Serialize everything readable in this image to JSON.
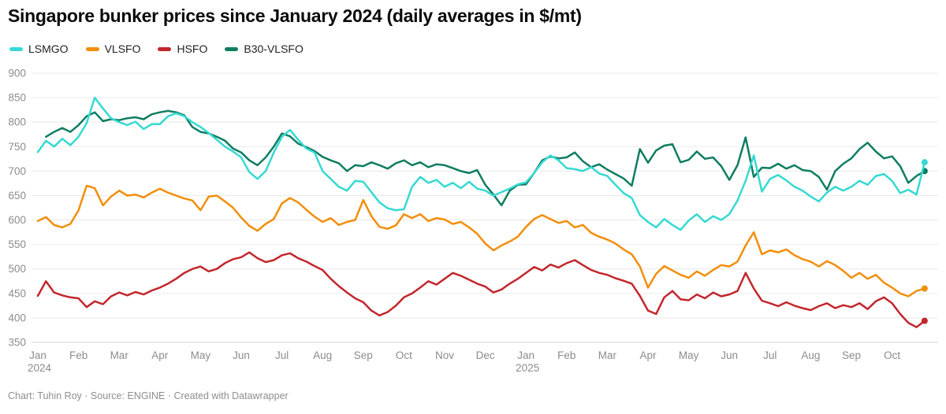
{
  "header": {
    "title": "Singapore bunker prices since January 2024 (daily averages in $/mt)"
  },
  "footer": {
    "credit": "Chart: Tuhin Roy · Source: ENGINE · Created with Datawrapper"
  },
  "colors": {
    "grid": "#e9e9e9",
    "baseline": "#d5d5d5",
    "axis_text": "#8c8c8c",
    "legend_text": "#222222"
  },
  "chart_data": {
    "type": "line",
    "title": "Singapore bunker prices since January 2024 (daily averages in $/mt)",
    "unit": "$/mt",
    "grid": true,
    "legend_position": "top-left",
    "y_axis": {
      "ticks": [
        900,
        850,
        800,
        750,
        700,
        650,
        600,
        550,
        500,
        450,
        400,
        350
      ],
      "min": 350,
      "max": 900
    },
    "x_axis": {
      "months": [
        "Jan",
        "Feb",
        "Mar",
        "Apr",
        "May",
        "Jun",
        "Jul",
        "Aug",
        "Sep",
        "Oct",
        "Nov",
        "Dec",
        "Jan",
        "Feb",
        "Mar",
        "Apr",
        "May",
        "Jun",
        "Jul",
        "Aug",
        "Sep",
        "Oct"
      ],
      "years": [
        {
          "at": 0,
          "label": "2024"
        },
        {
          "at": 12,
          "label": "2025"
        }
      ],
      "x_unit": "months since Jan 2024"
    },
    "series": [
      {
        "name": "LSMGO",
        "color": "#36d9d2",
        "t_start": 0,
        "t_step": 0.2,
        "end_value": 718,
        "values": [
          739,
          762,
          750,
          766,
          753,
          770,
          798,
          850,
          828,
          808,
          800,
          794,
          801,
          786,
          796,
          796,
          812,
          818,
          812,
          800,
          790,
          778,
          764,
          750,
          740,
          728,
          698,
          684,
          700,
          738,
          770,
          784,
          764,
          746,
          738,
          700,
          684,
          668,
          660,
          680,
          678,
          657,
          636,
          624,
          620,
          622,
          668,
          688,
          676,
          682,
          668,
          676,
          665,
          678,
          664,
          660,
          650,
          657,
          664,
          673,
          677,
          696,
          718,
          732,
          722,
          706,
          704,
          700,
          708,
          695,
          690,
          672,
          655,
          645,
          610,
          596,
          585,
          602,
          590,
          580,
          599,
          612,
          596,
          608,
          600,
          612,
          640,
          680,
          732,
          658,
          684,
          692,
          681,
          668,
          660,
          648,
          638,
          656,
          668,
          660,
          668,
          680,
          672,
          690,
          694,
          680,
          655,
          662,
          652,
          718
        ]
      },
      {
        "name": "VLSFO",
        "color": "#f28e0a",
        "t_start": 0,
        "t_step": 0.2,
        "end_value": 460,
        "values": [
          598,
          606,
          590,
          585,
          592,
          620,
          670,
          665,
          630,
          648,
          660,
          650,
          652,
          646,
          656,
          664,
          656,
          650,
          644,
          640,
          620,
          648,
          650,
          638,
          625,
          605,
          588,
          578,
          592,
          602,
          634,
          645,
          636,
          621,
          607,
          596,
          604,
          590,
          596,
          600,
          641,
          608,
          586,
          582,
          589,
          612,
          604,
          612,
          598,
          604,
          601,
          592,
          596,
          585,
          572,
          552,
          538,
          548,
          556,
          566,
          586,
          602,
          610,
          602,
          594,
          598,
          585,
          590,
          574,
          566,
          560,
          552,
          540,
          530,
          505,
          462,
          490,
          506,
          497,
          488,
          482,
          495,
          486,
          498,
          508,
          505,
          515,
          548,
          575,
          530,
          538,
          534,
          540,
          528,
          520,
          515,
          505,
          516,
          508,
          496,
          482,
          492,
          480,
          488,
          472,
          462,
          450,
          444,
          455,
          460
        ]
      },
      {
        "name": "HSFO",
        "color": "#c2272d",
        "t_start": 0,
        "t_step": 0.2,
        "end_value": 394,
        "values": [
          445,
          475,
          452,
          446,
          442,
          440,
          422,
          434,
          428,
          444,
          452,
          446,
          453,
          448,
          456,
          462,
          470,
          480,
          492,
          500,
          505,
          495,
          500,
          512,
          520,
          524,
          534,
          522,
          514,
          518,
          528,
          532,
          522,
          515,
          506,
          498,
          480,
          465,
          452,
          440,
          432,
          415,
          405,
          412,
          425,
          442,
          450,
          462,
          475,
          468,
          480,
          492,
          486,
          478,
          470,
          464,
          452,
          458,
          470,
          480,
          492,
          504,
          497,
          509,
          503,
          512,
          518,
          508,
          498,
          492,
          488,
          481,
          476,
          470,
          445,
          415,
          408,
          442,
          455,
          438,
          436,
          448,
          440,
          452,
          444,
          448,
          455,
          492,
          460,
          435,
          430,
          424,
          432,
          425,
          420,
          416,
          424,
          430,
          420,
          426,
          422,
          430,
          418,
          434,
          442,
          430,
          408,
          390,
          381,
          394
        ]
      },
      {
        "name": "B30-VLSFO",
        "color": "#0e7d62",
        "t_start": 0.2,
        "t_step": 0.2,
        "end_value": 700,
        "values": [
          770,
          780,
          788,
          780,
          794,
          812,
          820,
          802,
          806,
          804,
          808,
          810,
          806,
          816,
          820,
          823,
          820,
          814,
          790,
          780,
          777,
          770,
          762,
          746,
          738,
          722,
          712,
          728,
          750,
          777,
          771,
          756,
          749,
          741,
          729,
          722,
          716,
          700,
          712,
          710,
          718,
          712,
          705,
          716,
          722,
          712,
          718,
          708,
          714,
          712,
          706,
          700,
          696,
          702,
          672,
          652,
          630,
          660,
          672,
          673,
          696,
          722,
          730,
          726,
          728,
          738,
          720,
          708,
          714,
          703,
          694,
          685,
          670,
          745,
          717,
          742,
          752,
          755,
          718,
          723,
          740,
          725,
          728,
          710,
          682,
          712,
          769,
          688,
          707,
          706,
          715,
          705,
          712,
          702,
          700,
          688,
          662,
          700,
          715,
          726,
          745,
          758,
          740,
          726,
          730,
          710,
          676,
          690,
          700
        ]
      }
    ]
  }
}
